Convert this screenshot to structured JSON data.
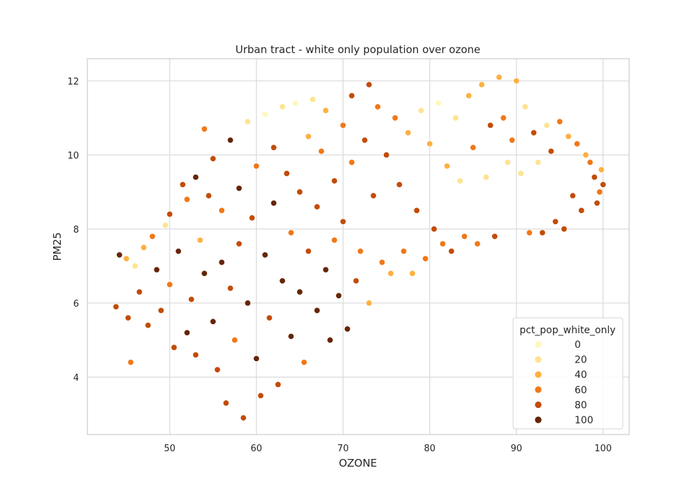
{
  "chart_data": {
    "type": "scatter",
    "title": "Urban tract - white only population over ozone",
    "xlabel": "OZONE",
    "ylabel": "PM25",
    "xlim": [
      40.5,
      103.0
    ],
    "ylim": [
      2.45,
      12.6
    ],
    "xticks": [
      50,
      60,
      70,
      80,
      90,
      100
    ],
    "yticks": [
      4,
      6,
      8,
      10,
      12
    ],
    "grid": true,
    "hue_field": "pct_pop_white_only",
    "legend": {
      "title": "pct_pop_white_only",
      "placement": "lower right",
      "entries": [
        {
          "label": "0",
          "color": "#fff7bc"
        },
        {
          "label": "20",
          "color": "#fee391"
        },
        {
          "label": "40",
          "color": "#fdb040"
        },
        {
          "label": "60",
          "color": "#f07818"
        },
        {
          "label": "80",
          "color": "#c24c08"
        },
        {
          "label": "100",
          "color": "#662506"
        }
      ]
    },
    "points": [
      [
        43.8,
        5.9,
        80
      ],
      [
        44.2,
        7.3,
        100
      ],
      [
        45.0,
        7.2,
        40
      ],
      [
        45.2,
        5.6,
        80
      ],
      [
        45.5,
        4.4,
        60
      ],
      [
        46.0,
        7.0,
        20
      ],
      [
        46.5,
        6.3,
        80
      ],
      [
        47.0,
        7.5,
        40
      ],
      [
        47.5,
        5.4,
        80
      ],
      [
        48.0,
        7.8,
        60
      ],
      [
        48.5,
        6.9,
        100
      ],
      [
        49.0,
        5.8,
        80
      ],
      [
        49.5,
        8.1,
        20
      ],
      [
        50.0,
        8.4,
        80
      ],
      [
        50.0,
        6.5,
        60
      ],
      [
        50.5,
        4.8,
        80
      ],
      [
        51.0,
        7.4,
        100
      ],
      [
        51.5,
        9.2,
        80
      ],
      [
        52.0,
        5.2,
        100
      ],
      [
        52.0,
        8.8,
        60
      ],
      [
        52.5,
        6.1,
        80
      ],
      [
        53.0,
        9.4,
        100
      ],
      [
        53.0,
        4.6,
        80
      ],
      [
        53.5,
        7.7,
        40
      ],
      [
        54.0,
        10.7,
        60
      ],
      [
        54.0,
        6.8,
        100
      ],
      [
        54.5,
        8.9,
        80
      ],
      [
        55.0,
        5.5,
        100
      ],
      [
        55.0,
        9.9,
        80
      ],
      [
        55.5,
        4.2,
        80
      ],
      [
        56.0,
        7.1,
        100
      ],
      [
        56.0,
        8.5,
        60
      ],
      [
        56.5,
        3.3,
        80
      ],
      [
        57.0,
        10.4,
        100
      ],
      [
        57.0,
        6.4,
        80
      ],
      [
        57.5,
        5.0,
        60
      ],
      [
        58.0,
        9.1,
        100
      ],
      [
        58.0,
        7.6,
        80
      ],
      [
        58.5,
        2.9,
        80
      ],
      [
        59.0,
        10.9,
        20
      ],
      [
        59.0,
        6.0,
        100
      ],
      [
        59.5,
        8.3,
        80
      ],
      [
        60.0,
        4.5,
        100
      ],
      [
        60.0,
        9.7,
        60
      ],
      [
        60.5,
        3.5,
        80
      ],
      [
        61.0,
        7.3,
        100
      ],
      [
        61.0,
        11.1,
        0
      ],
      [
        61.5,
        5.6,
        80
      ],
      [
        62.0,
        8.7,
        100
      ],
      [
        62.0,
        10.2,
        80
      ],
      [
        62.5,
        3.8,
        80
      ],
      [
        63.0,
        6.6,
        100
      ],
      [
        63.0,
        11.3,
        20
      ],
      [
        63.5,
        9.5,
        80
      ],
      [
        64.0,
        5.1,
        100
      ],
      [
        64.0,
        7.9,
        60
      ],
      [
        64.5,
        11.4,
        0
      ],
      [
        65.0,
        6.3,
        100
      ],
      [
        65.0,
        9.0,
        80
      ],
      [
        65.5,
        4.4,
        60
      ],
      [
        66.0,
        10.5,
        40
      ],
      [
        66.0,
        7.4,
        80
      ],
      [
        66.5,
        11.5,
        20
      ],
      [
        67.0,
        5.8,
        100
      ],
      [
        67.0,
        8.6,
        80
      ],
      [
        67.5,
        10.1,
        60
      ],
      [
        68.0,
        6.9,
        100
      ],
      [
        68.0,
        11.2,
        40
      ],
      [
        68.5,
        5.0,
        100
      ],
      [
        69.0,
        9.3,
        80
      ],
      [
        69.0,
        7.7,
        60
      ],
      [
        69.5,
        6.2,
        100
      ],
      [
        70.0,
        10.8,
        60
      ],
      [
        70.0,
        8.2,
        80
      ],
      [
        70.5,
        5.3,
        100
      ],
      [
        71.0,
        11.6,
        80
      ],
      [
        71.0,
        9.8,
        60
      ],
      [
        71.5,
        6.6,
        80
      ],
      [
        72.0,
        7.4,
        60
      ],
      [
        72.5,
        10.4,
        80
      ],
      [
        73.0,
        11.9,
        80
      ],
      [
        73.0,
        6.0,
        40
      ],
      [
        73.5,
        8.9,
        80
      ],
      [
        74.0,
        11.3,
        60
      ],
      [
        74.5,
        7.1,
        60
      ],
      [
        75.0,
        10.0,
        80
      ],
      [
        75.5,
        6.8,
        40
      ],
      [
        76.0,
        11.0,
        60
      ],
      [
        76.5,
        9.2,
        80
      ],
      [
        77.0,
        7.4,
        60
      ],
      [
        77.5,
        10.6,
        40
      ],
      [
        78.0,
        6.8,
        40
      ],
      [
        78.5,
        8.5,
        80
      ],
      [
        79.0,
        11.2,
        20
      ],
      [
        79.5,
        7.2,
        60
      ],
      [
        80.0,
        10.3,
        40
      ],
      [
        80.5,
        8.0,
        80
      ],
      [
        81.0,
        11.4,
        0
      ],
      [
        81.5,
        7.6,
        60
      ],
      [
        82.0,
        9.7,
        40
      ],
      [
        82.5,
        7.4,
        80
      ],
      [
        83.0,
        11.0,
        20
      ],
      [
        83.5,
        9.3,
        20
      ],
      [
        84.0,
        7.8,
        60
      ],
      [
        84.5,
        11.6,
        40
      ],
      [
        85.0,
        10.2,
        60
      ],
      [
        85.5,
        7.6,
        60
      ],
      [
        86.0,
        11.9,
        40
      ],
      [
        86.5,
        9.4,
        20
      ],
      [
        87.0,
        10.8,
        80
      ],
      [
        87.5,
        7.8,
        80
      ],
      [
        88.0,
        12.1,
        40
      ],
      [
        88.5,
        11.0,
        60
      ],
      [
        89.0,
        9.8,
        20
      ],
      [
        89.5,
        10.4,
        60
      ],
      [
        90.0,
        12.0,
        40
      ],
      [
        90.5,
        9.5,
        20
      ],
      [
        91.0,
        11.3,
        20
      ],
      [
        91.5,
        7.9,
        60
      ],
      [
        92.0,
        10.6,
        80
      ],
      [
        92.5,
        9.8,
        20
      ],
      [
        93.0,
        7.9,
        80
      ],
      [
        93.5,
        10.8,
        20
      ],
      [
        94.0,
        10.1,
        80
      ],
      [
        94.5,
        8.2,
        80
      ],
      [
        95.0,
        10.9,
        60
      ],
      [
        95.5,
        8.0,
        80
      ],
      [
        96.0,
        10.5,
        40
      ],
      [
        96.5,
        8.9,
        80
      ],
      [
        97.0,
        10.3,
        60
      ],
      [
        97.5,
        8.5,
        80
      ],
      [
        98.0,
        10.0,
        40
      ],
      [
        98.5,
        9.8,
        60
      ],
      [
        99.0,
        9.4,
        80
      ],
      [
        99.3,
        8.7,
        80
      ],
      [
        99.6,
        9.0,
        60
      ],
      [
        99.8,
        9.6,
        40
      ],
      [
        100.0,
        9.2,
        80
      ]
    ]
  }
}
